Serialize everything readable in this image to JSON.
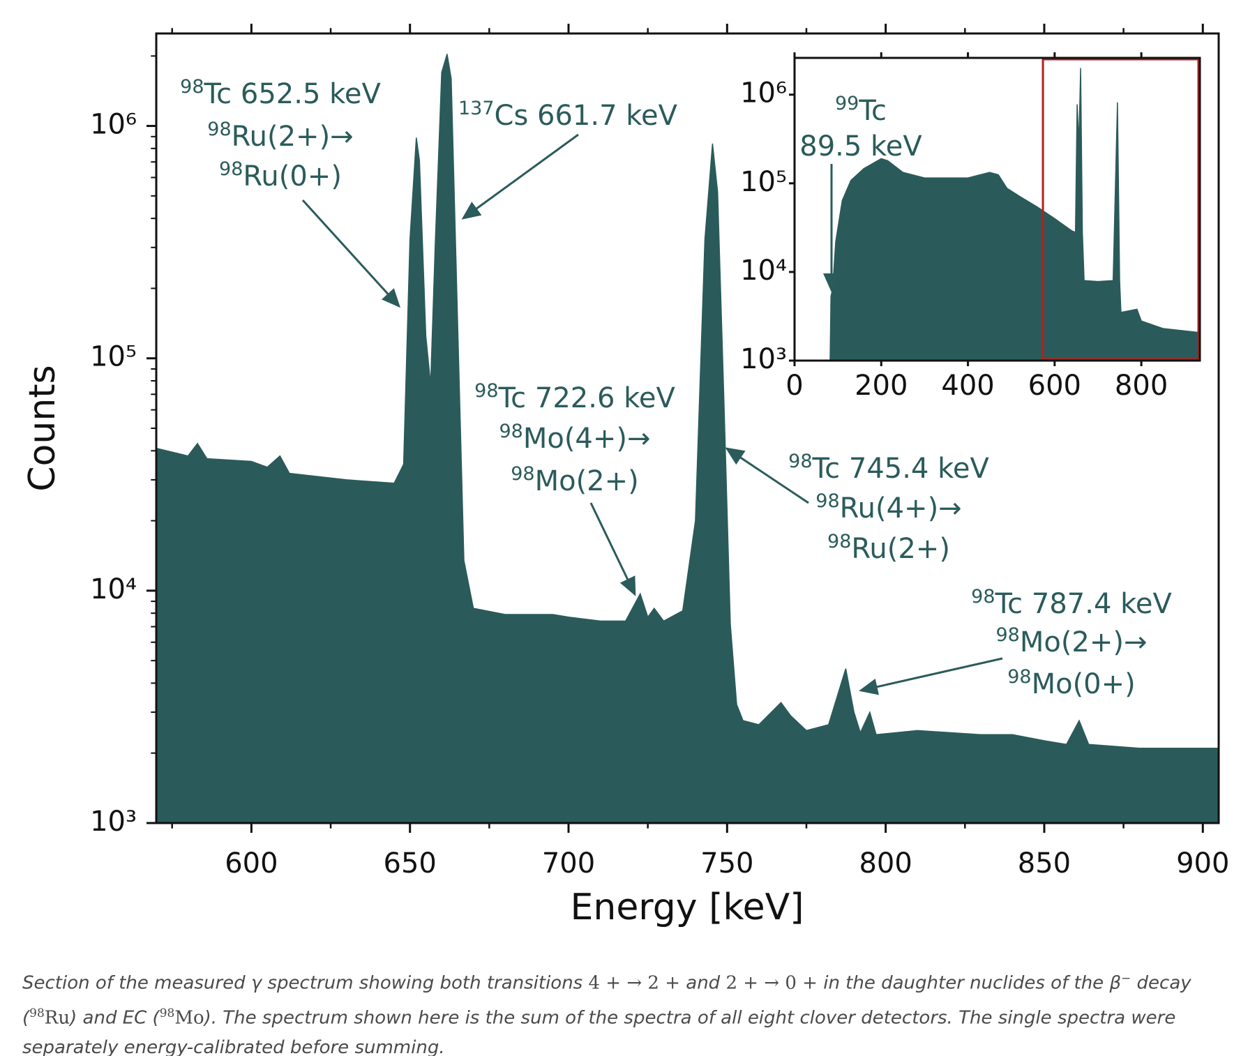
{
  "chart_data": [
    {
      "type": "area",
      "xlabel": "Energy [keV]",
      "ylabel": "Counts",
      "color": "#2a5b5a",
      "annotation_color": "#2b5b5b",
      "log_y": true,
      "x": [
        570,
        580,
        583,
        586,
        600,
        605,
        609,
        612,
        630,
        645,
        648,
        650,
        652,
        653,
        655,
        656.5,
        658,
        660,
        661.7,
        663,
        665,
        667,
        670,
        680,
        695,
        700,
        710,
        718,
        722.6,
        725,
        727,
        730,
        736,
        740,
        743,
        745.4,
        747,
        749,
        751,
        753,
        755,
        760,
        767,
        770,
        775,
        782,
        787.4,
        790,
        792,
        795,
        797,
        810,
        830,
        840,
        850,
        857,
        861,
        864,
        880,
        905
      ],
      "values": [
        41000,
        38000,
        43000,
        37000,
        36000,
        34000,
        38000,
        32000,
        30000,
        29000,
        35000,
        325000,
        890000,
        710000,
        125000,
        77000,
        320000,
        1700000,
        2040000,
        1600000,
        146000,
        13500,
        8400,
        7900,
        7900,
        7700,
        7400,
        7400,
        9700,
        7700,
        8400,
        7400,
        8200,
        20000,
        325000,
        840000,
        520000,
        65000,
        7200,
        3240,
        2760,
        2650,
        3300,
        2900,
        2500,
        2650,
        4620,
        3000,
        2450,
        3000,
        2400,
        2500,
        2400,
        2400,
        2260,
        2180,
        2760,
        2180,
        2100,
        2100
      ],
      "xlim": [
        570,
        905
      ],
      "ylim": [
        1000,
        2500000
      ],
      "xticks": [
        600,
        650,
        700,
        750,
        800,
        850,
        900
      ],
      "xminorticks": [
        575,
        625,
        675,
        725,
        775,
        825,
        875
      ],
      "yticks": [
        {
          "value": 1000,
          "label": "10³"
        },
        {
          "value": 10000,
          "label": "10⁴"
        },
        {
          "value": 100000,
          "label": "10⁵"
        },
        {
          "value": 1000000,
          "label": "10⁶"
        }
      ],
      "yminorticks": [
        2000,
        3000,
        4000,
        5000,
        6000,
        7000,
        8000,
        9000,
        20000,
        30000,
        40000,
        50000,
        60000,
        70000,
        80000,
        90000,
        200000,
        300000,
        400000,
        500000,
        600000,
        700000,
        800000,
        900000,
        2000000
      ],
      "annotations": [
        {
          "lines": [
            {
              "sup": "98",
              "text": "Tc 652.5 keV"
            },
            {
              "sup": "98",
              "text": "Ru(2+)→"
            },
            {
              "sup": "98",
              "text": "Ru(0+)"
            }
          ]
        },
        {
          "lines": [
            {
              "sup": "137",
              "text": "Cs 661.7 keV"
            }
          ]
        },
        {
          "lines": [
            {
              "sup": "98",
              "text": "Tc 722.6 keV"
            },
            {
              "sup": "98",
              "text": "Mo(4+)→"
            },
            {
              "sup": "98",
              "text": "Mo(2+)"
            }
          ]
        },
        {
          "lines": [
            {
              "sup": "98",
              "text": "Tc 745.4 keV"
            },
            {
              "sup": "98",
              "text": "Ru(4+)→"
            },
            {
              "sup": "98",
              "text": "Ru(2+)"
            }
          ]
        },
        {
          "lines": [
            {
              "sup": "98",
              "text": "Tc 787.4 keV"
            },
            {
              "sup": "98",
              "text": "Mo(2+)→"
            },
            {
              "sup": "98",
              "text": "Mo(0+)"
            }
          ]
        }
      ]
    },
    {
      "type": "area",
      "color": "#2a5b5a",
      "annotation_color": "#2b5b5b",
      "log_y": true,
      "x": [
        82,
        84,
        88,
        95,
        110,
        130,
        160,
        200,
        215,
        250,
        300,
        400,
        450,
        470,
        490,
        520,
        560,
        600,
        640,
        648,
        652,
        656,
        660,
        664,
        668,
        700,
        735,
        745,
        750,
        753,
        790,
        800,
        850,
        935
      ],
      "values": [
        1000,
        5300,
        6500,
        22000,
        64000,
        108000,
        147000,
        190000,
        180000,
        133000,
        115000,
        115000,
        133000,
        125000,
        88000,
        71000,
        54000,
        40000,
        29000,
        28000,
        780000,
        275000,
        2000000,
        28000,
        8000,
        7800,
        8000,
        820000,
        8000,
        3500,
        3800,
        2800,
        2300,
        2070
      ],
      "xlim": [
        0,
        935
      ],
      "ylim": [
        1000,
        2600000
      ],
      "xticks": [
        0,
        200,
        400,
        600,
        800
      ],
      "yticks": [
        {
          "value": 1000,
          "label": "10³"
        },
        {
          "value": 10000,
          "label": "10⁴"
        },
        {
          "value": 100000,
          "label": "10⁵"
        },
        {
          "value": 1000000,
          "label": "10⁶"
        }
      ],
      "highlight": {
        "xlim": [
          573,
          935
        ],
        "color": "#b22222"
      },
      "annotations": [
        {
          "lines": [
            {
              "sup": "99",
              "text": "Tc"
            },
            {
              "text": "89.5 keV"
            }
          ]
        }
      ]
    }
  ],
  "caption": [
    {
      "text": "Section of the measured γ spectrum showing both transitions ",
      "style": "italic"
    },
    {
      "text": "4 + → 2 +",
      "style": "math"
    },
    {
      "text": " and ",
      "style": "italic"
    },
    {
      "text": "2 + → 0 +",
      "style": "math"
    },
    {
      "text": " in the daughter nuclides of the ",
      "style": "italic"
    },
    {
      "text": "β",
      "style": "italic"
    },
    {
      "text": "−",
      "style": "sup"
    },
    {
      "text": " decay (",
      "style": "italic"
    },
    {
      "text": "98",
      "style": "sup"
    },
    {
      "text": "Ru",
      "style": "math"
    },
    {
      "text": ") and EC (",
      "style": "italic"
    },
    {
      "text": "98",
      "style": "sup"
    },
    {
      "text": "Mo",
      "style": "math"
    },
    {
      "text": "). The spectrum shown here is the sum of the spectra of all eight clover detectors. The single spectra were separately energy-calibrated before summing.",
      "style": "italic"
    }
  ]
}
